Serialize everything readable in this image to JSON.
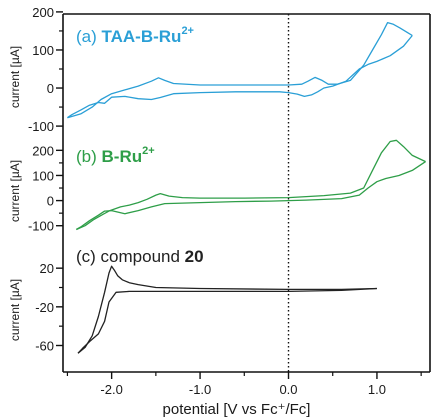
{
  "chart_data": {
    "type": "line",
    "xlabel": "potential [V vs Fc⁺/Fc]",
    "xlim": [
      -2.55,
      1.6
    ],
    "x_ticks": [
      "-2.0",
      "-1.0",
      "0.0",
      "1.0"
    ],
    "x_tick_values": [
      -2.0,
      -1.0,
      0.0,
      1.0
    ],
    "reference_line_x": 0.0,
    "panels": [
      {
        "label_prefix": "(a) ",
        "label_bold": "TAA-B-Ru",
        "label_sup": "2+",
        "color": "#2a9fd6",
        "ylabel": "current [µA]",
        "ylim": [
          -105,
          205
        ],
        "y_ticks": [
          "200",
          "100",
          "0",
          "-100"
        ],
        "y_tick_values": [
          200,
          100,
          0,
          -100
        ],
        "series": [
          {
            "x": [
              -2.5,
              -2.35,
              -2.22,
              -2.12,
              -2.0,
              -1.85,
              -1.7,
              -1.55,
              -1.47,
              -1.4,
              -1.3,
              -1.0,
              -0.5,
              0.0,
              0.15,
              0.22,
              0.3,
              0.38,
              0.45,
              0.55,
              0.7,
              0.85,
              0.95,
              1.05,
              1.12,
              1.18,
              1.26,
              1.35,
              1.4
            ],
            "y": [
              -78,
              -68,
              -50,
              -30,
              -15,
              -5,
              5,
              18,
              27,
              20,
              12,
              8,
              8,
              8,
              10,
              18,
              28,
              20,
              10,
              10,
              20,
              60,
              100,
              140,
              172,
              168,
              158,
              145,
              138
            ]
          },
          {
            "x": [
              1.4,
              1.3,
              1.15,
              1.0,
              0.9,
              0.8,
              0.65,
              0.5,
              0.4,
              0.33,
              0.26,
              0.18,
              0.1,
              0.0,
              -0.1,
              -0.3,
              -0.6,
              -1.0,
              -1.3,
              -1.45,
              -1.55,
              -1.7,
              -1.85,
              -2.0,
              -2.08,
              -2.15,
              -2.25,
              -2.35,
              -2.45,
              -2.5
            ],
            "y": [
              138,
              110,
              85,
              70,
              62,
              50,
              18,
              5,
              0,
              -10,
              -18,
              -22,
              -16,
              -12,
              -10,
              -10,
              -10,
              -12,
              -15,
              -25,
              -30,
              -28,
              -22,
              -24,
              -40,
              -38,
              -45,
              -58,
              -70,
              -78
            ]
          }
        ]
      },
      {
        "label_prefix": "(b) ",
        "label_bold": "B-Ru",
        "label_sup": "2+",
        "color": "#2e9e48",
        "ylabel": "current [µA]",
        "ylim": [
          -125,
          265
        ],
        "y_ticks": [
          "200",
          "100",
          "0",
          "-100"
        ],
        "y_tick_values": [
          200,
          100,
          0,
          -100
        ],
        "series": [
          {
            "x": [
              -2.4,
              -2.3,
              -2.2,
              -2.1,
              -2.02,
              -1.9,
              -1.8,
              -1.7,
              -1.6,
              -1.5,
              -1.45,
              -1.35,
              -1.2,
              -1.0,
              -0.5,
              0.0,
              0.4,
              0.7,
              0.85,
              0.95,
              1.05,
              1.15,
              1.22,
              1.3,
              1.4,
              1.55
            ],
            "y": [
              -115,
              -100,
              -75,
              -55,
              -40,
              -25,
              -18,
              -8,
              5,
              22,
              28,
              18,
              12,
              10,
              10,
              12,
              20,
              30,
              50,
              120,
              190,
              235,
              240,
              215,
              180,
              155
            ]
          },
          {
            "x": [
              1.55,
              1.4,
              1.25,
              1.1,
              1.0,
              0.9,
              0.8,
              0.6,
              0.2,
              -0.2,
              -0.6,
              -1.0,
              -1.4,
              -1.55,
              -1.7,
              -1.85,
              -2.0,
              -2.08,
              -2.15,
              -2.25,
              -2.35,
              -2.4
            ],
            "y": [
              155,
              120,
              100,
              88,
              75,
              50,
              22,
              8,
              2,
              -2,
              -4,
              -8,
              -12,
              -25,
              -40,
              -52,
              -40,
              -42,
              -58,
              -80,
              -105,
              -115
            ]
          }
        ]
      },
      {
        "label_prefix": "(c) compound ",
        "label_bold": "20",
        "label_sup": "",
        "color": "#222222",
        "ylabel": "current [µA]",
        "ylim": [
          -75,
          45
        ],
        "y_ticks": [
          "20",
          "-20",
          "-60"
        ],
        "y_tick_values": [
          20,
          -20,
          -60
        ],
        "series": [
          {
            "x": [
              -2.38,
              -2.3,
              -2.22,
              -2.15,
              -2.08,
              -2.03,
              -2.0,
              -1.97,
              -1.93,
              -1.88,
              -1.8,
              -1.7,
              -1.5,
              -1.0,
              0.0,
              0.6,
              1.0
            ],
            "y": [
              -68,
              -62,
              -50,
              -30,
              -5,
              15,
              22,
              18,
              12,
              8,
              5,
              3,
              0,
              -1,
              -2,
              -2,
              -1
            ]
          },
          {
            "x": [
              1.0,
              0.6,
              0.0,
              -1.0,
              -1.5,
              -1.8,
              -1.95,
              -2.03,
              -2.08,
              -2.15,
              -2.25,
              -2.33,
              -2.38
            ],
            "y": [
              -1,
              -3,
              -4,
              -4,
              -4,
              -4,
              -5,
              -15,
              -35,
              -48,
              -56,
              -63,
              -68
            ]
          }
        ]
      }
    ]
  }
}
